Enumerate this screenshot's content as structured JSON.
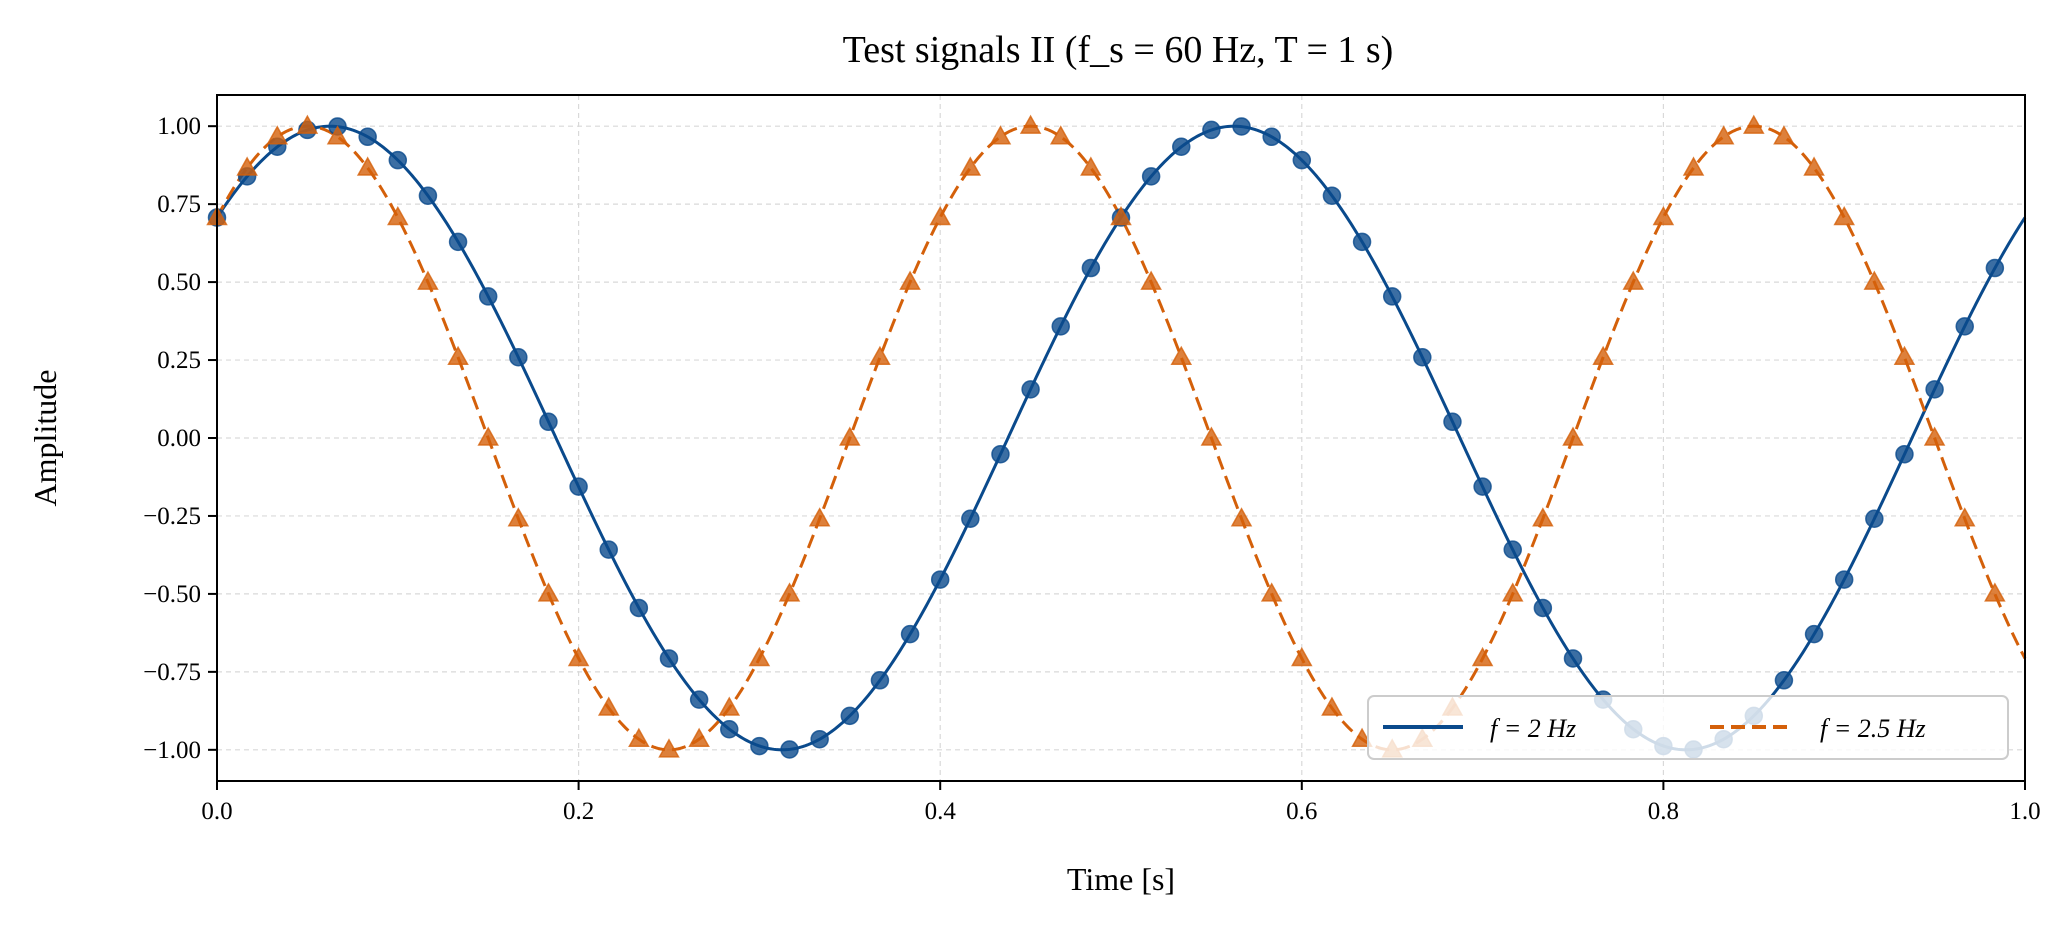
{
  "chart_data": {
    "type": "line",
    "title": "Test signals II (f_s = 60 Hz, T = 1 s)",
    "xlabel": "Time [s]",
    "ylabel": "Amplitude",
    "xlim": [
      0.0,
      1.0
    ],
    "ylim": [
      -1.1,
      1.1
    ],
    "xticks": [
      "0.0",
      "0.2",
      "0.4",
      "0.6",
      "0.8",
      "1.0"
    ],
    "xtick_values": [
      0.0,
      0.2,
      0.4,
      0.6,
      0.8,
      1.0
    ],
    "yticks": [
      "1.00",
      "0.75",
      "0.50",
      "0.25",
      "0.00",
      "−0.25",
      "−0.50",
      "−0.75",
      "−1.00"
    ],
    "ytick_values": [
      1.0,
      0.75,
      0.5,
      0.25,
      0.0,
      -0.25,
      -0.5,
      -0.75,
      -1.0
    ],
    "grid": true,
    "legend_placement": "lower-right",
    "sample_rate_hz": 60,
    "series": [
      {
        "name": "f = 2 Hz",
        "frequency_hz": 2,
        "color": "#0a4a8c",
        "linestyle": "solid",
        "marker": "circle",
        "values": [
          0.707,
          0.839,
          0.934,
          0.988,
          0.999,
          0.966,
          0.891,
          0.777,
          0.629,
          0.454,
          0.259,
          0.052,
          -0.156,
          -0.358,
          -0.545,
          -0.707,
          -0.839,
          -0.934,
          -0.988,
          -0.999,
          -0.966,
          -0.891,
          -0.777,
          -0.629,
          -0.454,
          -0.259,
          -0.052,
          0.156,
          0.358,
          0.545,
          0.707,
          0.839,
          0.934,
          0.988,
          0.999,
          0.966,
          0.891,
          0.777,
          0.629,
          0.454,
          0.259,
          0.052,
          -0.156,
          -0.358,
          -0.545,
          -0.707,
          -0.839,
          -0.934,
          -0.988,
          -0.999,
          -0.966,
          -0.891,
          -0.777,
          -0.629,
          -0.454,
          -0.259,
          -0.052,
          0.156,
          0.358,
          0.545
        ]
      },
      {
        "name": "f = 2.5 Hz",
        "frequency_hz": 2.5,
        "color": "#d4600a",
        "linestyle": "dashed",
        "marker": "triangle",
        "values": [
          0.707,
          0.866,
          0.966,
          1.0,
          0.966,
          0.866,
          0.707,
          0.5,
          0.259,
          0.0,
          -0.259,
          -0.5,
          -0.707,
          -0.866,
          -0.966,
          -1.0,
          -0.966,
          -0.866,
          -0.707,
          -0.5,
          -0.259,
          0.0,
          0.259,
          0.5,
          0.707,
          0.866,
          0.966,
          1.0,
          0.966,
          0.866,
          0.707,
          0.5,
          0.259,
          0.0,
          -0.259,
          -0.5,
          -0.707,
          -0.866,
          -0.966,
          -1.0,
          -0.966,
          -0.866,
          -0.707,
          -0.5,
          -0.259,
          0.0,
          0.259,
          0.5,
          0.707,
          0.866,
          0.966,
          1.0,
          0.966,
          0.866,
          0.707,
          0.5,
          0.259,
          0.0,
          -0.259,
          -0.5
        ]
      }
    ]
  }
}
